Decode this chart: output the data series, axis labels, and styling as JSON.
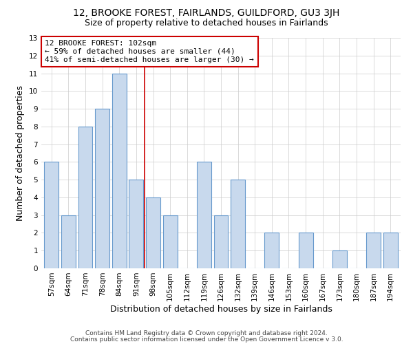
{
  "title1": "12, BROOKE FOREST, FAIRLANDS, GUILDFORD, GU3 3JH",
  "title2": "Size of property relative to detached houses in Fairlands",
  "xlabel": "Distribution of detached houses by size in Fairlands",
  "ylabel": "Number of detached properties",
  "bar_labels": [
    "57sqm",
    "64sqm",
    "71sqm",
    "78sqm",
    "84sqm",
    "91sqm",
    "98sqm",
    "105sqm",
    "112sqm",
    "119sqm",
    "126sqm",
    "132sqm",
    "139sqm",
    "146sqm",
    "153sqm",
    "160sqm",
    "167sqm",
    "173sqm",
    "180sqm",
    "187sqm",
    "194sqm"
  ],
  "bar_values": [
    6,
    3,
    8,
    9,
    11,
    5,
    4,
    3,
    0,
    6,
    3,
    5,
    0,
    2,
    0,
    2,
    0,
    1,
    0,
    2,
    2
  ],
  "bar_color": "#c8d9ed",
  "bar_edge_color": "#6699cc",
  "vline_x": 5.5,
  "annotation_box_text": "12 BROOKE FOREST: 102sqm\n← 59% of detached houses are smaller (44)\n41% of semi-detached houses are larger (30) →",
  "annotation_box_color": "white",
  "annotation_box_edge_color": "#cc0000",
  "vline_color": "#cc0000",
  "ylim": [
    0,
    13
  ],
  "yticks": [
    0,
    1,
    2,
    3,
    4,
    5,
    6,
    7,
    8,
    9,
    10,
    11,
    12,
    13
  ],
  "grid_color": "#cccccc",
  "background_color": "white",
  "footer1": "Contains HM Land Registry data © Crown copyright and database right 2024.",
  "footer2": "Contains public sector information licensed under the Open Government Licence v 3.0.",
  "title1_fontsize": 10,
  "title2_fontsize": 9,
  "xlabel_fontsize": 9,
  "ylabel_fontsize": 9,
  "tick_fontsize": 7.5,
  "footer_fontsize": 6.5,
  "ann_fontsize": 8
}
